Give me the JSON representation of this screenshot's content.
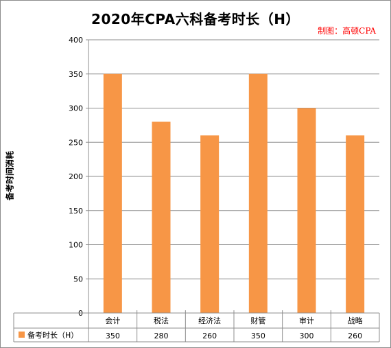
{
  "chart_data": {
    "type": "bar",
    "title": "2020年CPA六科备考时长（H）",
    "credit": "制图：高顿CPA",
    "ylabel": "备考时间消耗",
    "categories": [
      "会计",
      "税法",
      "经济法",
      "财管",
      "审计",
      "战略"
    ],
    "series": [
      {
        "name": "备考时长（H）",
        "values": [
          350,
          280,
          260,
          350,
          300,
          260
        ],
        "color": "#f79646"
      }
    ],
    "ylim": [
      0,
      400
    ],
    "yticks": [
      "0",
      "50",
      "100",
      "150",
      "200",
      "250",
      "300",
      "350",
      "400"
    ],
    "table_values": [
      "350",
      "280",
      "260",
      "350",
      "300",
      "260"
    ],
    "grid": true,
    "legend": "data-table"
  }
}
